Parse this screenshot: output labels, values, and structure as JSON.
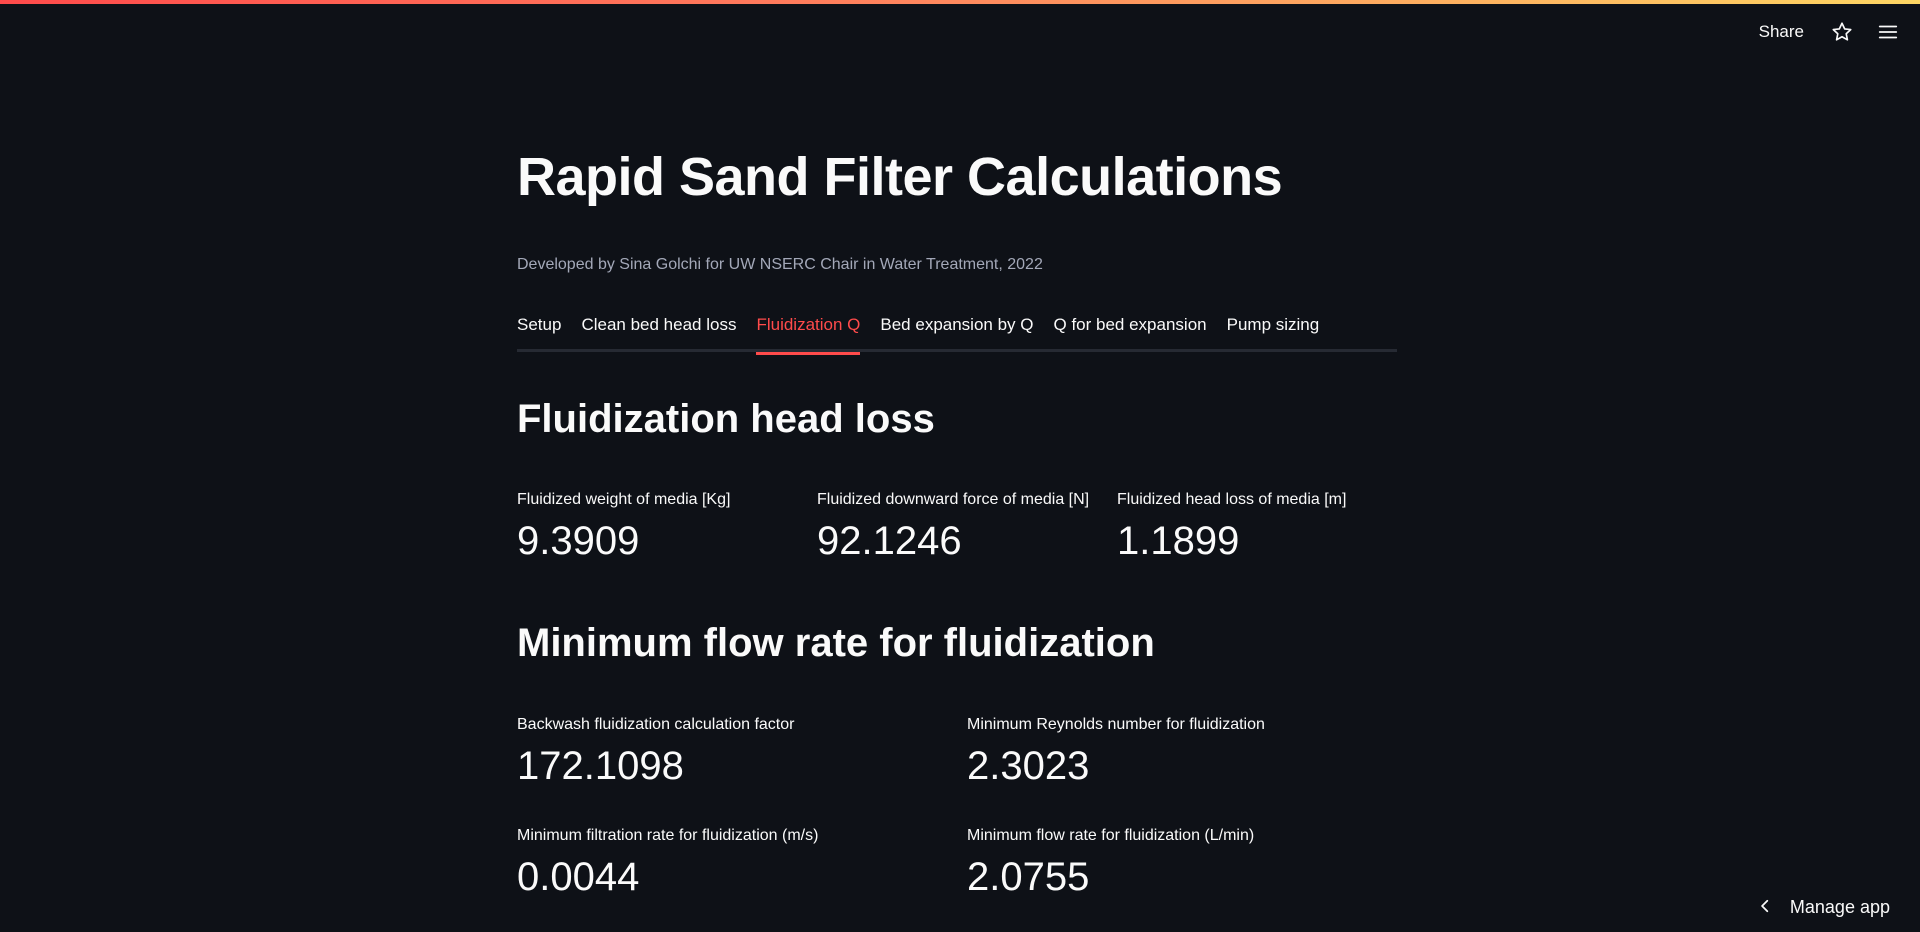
{
  "header": {
    "share_label": "Share",
    "star_icon": "star-icon",
    "menu_icon": "hamburger-menu-icon"
  },
  "page": {
    "title": "Rapid Sand Filter Calculations",
    "caption": "Developed by Sina Golchi for UW NSERC Chair in Water Treatment, 2022"
  },
  "tabs": [
    {
      "label": "Setup"
    },
    {
      "label": "Clean bed head loss"
    },
    {
      "label": "Fluidization Q",
      "active": true
    },
    {
      "label": "Bed expansion by Q"
    },
    {
      "label": "Q for bed expansion"
    },
    {
      "label": "Pump sizing"
    }
  ],
  "sections": {
    "head_loss": {
      "heading": "Fluidization head loss",
      "metrics": [
        {
          "label": "Fluidized weight of media [Kg]",
          "value": "9.3909"
        },
        {
          "label": "Fluidized downward force of media [N]",
          "value": "92.1246"
        },
        {
          "label": "Fluidized head loss of media [m]",
          "value": "1.1899"
        }
      ]
    },
    "min_flow": {
      "heading": "Minimum flow rate for fluidization",
      "metrics": [
        {
          "label": "Backwash fluidization calculation factor",
          "value": "172.1098"
        },
        {
          "label": "Minimum Reynolds number for fluidization",
          "value": "2.3023"
        },
        {
          "label": "Minimum filtration rate for fluidization (m/s)",
          "value": "0.0044"
        },
        {
          "label": "Minimum flow rate for fluidization (L/min)",
          "value": "2.0755"
        }
      ]
    }
  },
  "footer": {
    "manage_label": "Manage app",
    "manage_icon": "chevron-left-icon"
  },
  "colors": {
    "background": "#0e1117",
    "accent": "#ff4b4b",
    "text": "#fafafa",
    "muted": "#a3a8b8"
  }
}
